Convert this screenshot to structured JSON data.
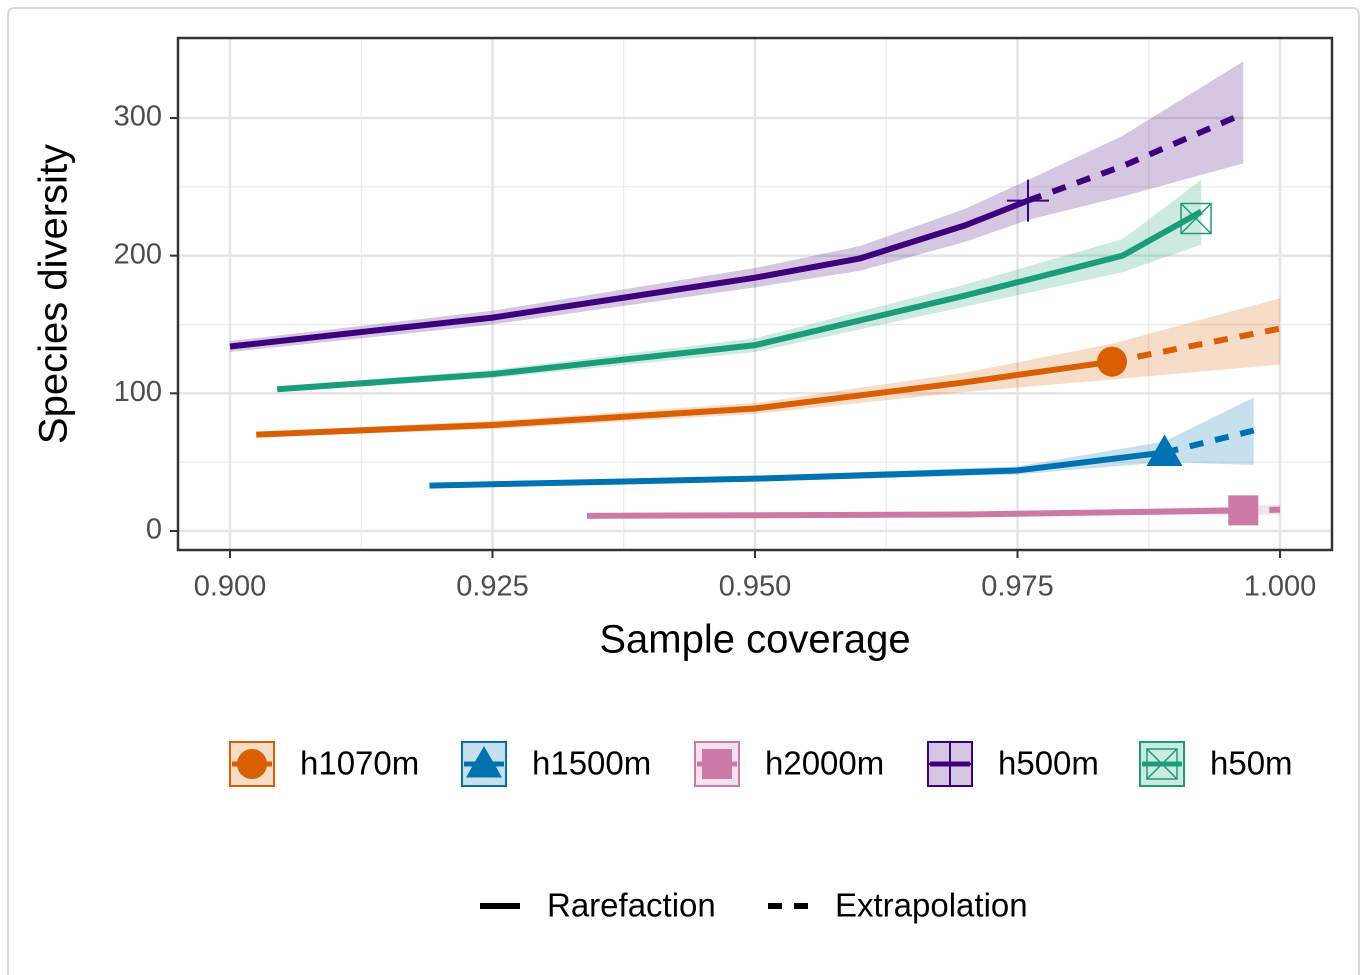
{
  "chart_data": {
    "type": "line",
    "x_label": "Sample coverage",
    "y_label": "Species diversity",
    "xlim": [
      0.89505,
      1.00495
    ],
    "ylim": [
      -13.8,
      358.1
    ],
    "xticks": [
      {
        "value": 0.9,
        "label": "0.900"
      },
      {
        "value": 0.925,
        "label": "0.925"
      },
      {
        "value": 0.95,
        "label": "0.950"
      },
      {
        "value": 0.975,
        "label": "0.975"
      },
      {
        "value": 1.0,
        "label": "1.000"
      }
    ],
    "x_minor_ticks": [
      0.9125,
      0.9375,
      0.9625,
      0.9875
    ],
    "yticks": [
      0,
      100,
      200,
      300
    ],
    "y_minor_ticks": [
      50,
      150,
      250
    ],
    "grid": true,
    "legend_position": "bottom",
    "linetype_legend": [
      "Rarefaction",
      "Extrapolation"
    ],
    "series": [
      {
        "name": "h1070m",
        "color": "#d95f02",
        "marker": "circle",
        "observed": {
          "x": 0.984,
          "y": 123
        },
        "rarefaction": {
          "x": [
            0.9025,
            0.925,
            0.95,
            0.97,
            0.984
          ],
          "values": [
            70,
            77,
            89,
            108,
            123
          ],
          "lower": [
            68,
            74,
            85,
            101,
            110
          ],
          "upper": [
            72,
            80,
            93,
            115,
            136
          ]
        },
        "extrapolation": {
          "x": [
            0.984,
            1.0
          ],
          "values": [
            123,
            147
          ],
          "lower": [
            110,
            121
          ],
          "upper": [
            136,
            169
          ]
        }
      },
      {
        "name": "h1500m",
        "color": "#0072b2",
        "marker": "triangle",
        "observed": {
          "x": 0.989,
          "y": 57
        },
        "rarefaction": {
          "x": [
            0.919,
            0.95,
            0.975,
            0.989
          ],
          "values": [
            33,
            38,
            44,
            57
          ],
          "lower": [
            32,
            36,
            41,
            50
          ],
          "upper": [
            34,
            40,
            47,
            65
          ]
        },
        "extrapolation": {
          "x": [
            0.989,
            0.9975
          ],
          "values": [
            57,
            73
          ],
          "lower": [
            50,
            48
          ],
          "upper": [
            65,
            97
          ]
        }
      },
      {
        "name": "h2000m",
        "color": "#cc79a7",
        "marker": "square",
        "observed": {
          "x": 0.9965,
          "y": 15
        },
        "rarefaction": {
          "x": [
            0.934,
            0.97,
            0.9965
          ],
          "values": [
            11,
            12,
            15
          ],
          "lower": [
            10,
            11,
            12
          ],
          "upper": [
            12,
            13,
            18
          ]
        },
        "extrapolation": {
          "x": [
            0.9965,
            1.0
          ],
          "values": [
            15,
            15.5
          ],
          "lower": [
            12,
            12
          ],
          "upper": [
            18,
            19
          ]
        }
      },
      {
        "name": "h500m",
        "color": "#3f007d",
        "marker": "plus",
        "observed": {
          "x": 0.976,
          "y": 240
        },
        "rarefaction": {
          "x": [
            0.9,
            0.925,
            0.95,
            0.96,
            0.97,
            0.976
          ],
          "values": [
            134,
            155,
            184,
            198,
            222,
            240
          ],
          "lower": [
            130,
            150,
            177,
            189,
            210,
            226
          ],
          "upper": [
            138,
            160,
            191,
            207,
            234,
            255
          ]
        },
        "extrapolation": {
          "x": [
            0.976,
            0.985,
            0.9965
          ],
          "values": [
            240,
            265,
            303
          ],
          "lower": [
            226,
            243,
            267
          ],
          "upper": [
            255,
            287,
            341
          ]
        }
      },
      {
        "name": "h50m",
        "color": "#1b9e77",
        "marker": "square-x",
        "observed": {
          "x": 0.992,
          "y": 227
        },
        "rarefaction": {
          "x": [
            0.9045,
            0.925,
            0.95,
            0.97,
            0.985,
            0.9925
          ],
          "values": [
            103,
            114,
            135,
            171,
            200,
            232
          ],
          "lower": [
            101,
            111,
            130,
            163,
            188,
            208
          ],
          "upper": [
            105,
            117,
            140,
            179,
            212,
            255
          ]
        }
      }
    ]
  }
}
